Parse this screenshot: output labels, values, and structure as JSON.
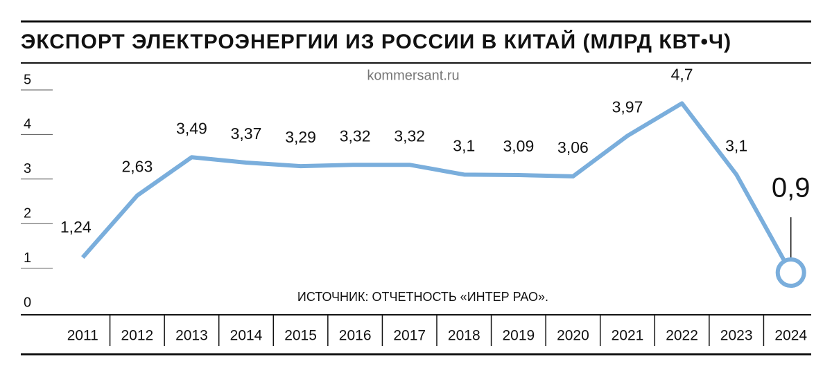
{
  "chart_data": {
    "type": "line",
    "title": "ЭКСПОРТ ЭЛЕКТРОЭНЕРГИИ ИЗ РОССИИ В КИТАЙ (МЛРД КВТ•Ч)",
    "source": "kommersant.ru",
    "note": "ИСТОЧНИК: ОТЧЕТНОСТЬ «ИНТЕР РАО».",
    "categories": [
      "2011",
      "2012",
      "2013",
      "2014",
      "2015",
      "2016",
      "2017",
      "2018",
      "2019",
      "2020",
      "2021",
      "2022",
      "2023",
      "2024"
    ],
    "values": [
      1.24,
      2.63,
      3.49,
      3.37,
      3.29,
      3.32,
      3.32,
      3.1,
      3.09,
      3.06,
      3.97,
      4.7,
      3.1,
      0.9
    ],
    "value_labels": [
      "1,24",
      "2,63",
      "3,49",
      "3,37",
      "3,29",
      "3,32",
      "3,32",
      "3,1",
      "3,09",
      "3,06",
      "3,97",
      "4,7",
      "3,1",
      "0,9"
    ],
    "color": "#7aaedc",
    "ylim": [
      0,
      5
    ],
    "yticks": [
      0,
      1,
      2,
      3,
      4,
      5
    ]
  }
}
